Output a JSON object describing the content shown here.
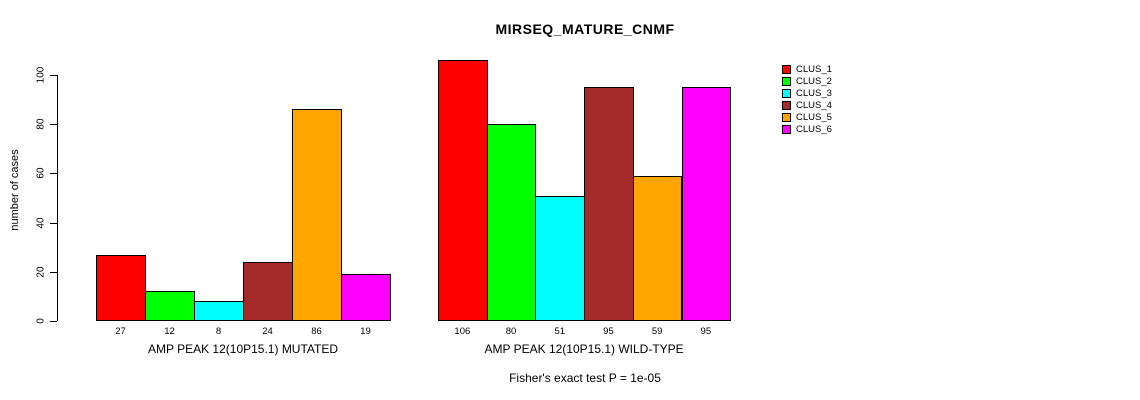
{
  "title": "MIRSEQ_MATURE_CNMF",
  "footer": "Fisher's exact test P = 1e-05",
  "chart_data": {
    "type": "bar",
    "title": "MIRSEQ_MATURE_CNMF",
    "ylabel": "number of cases",
    "ylim": [
      0,
      100
    ],
    "yticks": [
      0,
      20,
      40,
      60,
      80,
      100
    ],
    "grid": false,
    "legend_position": "right",
    "legend_entries": [
      {
        "label": "CLUS_1",
        "color": "#FF0000"
      },
      {
        "label": "CLUS_2",
        "color": "#00FF00"
      },
      {
        "label": "CLUS_3",
        "color": "#00FFFF"
      },
      {
        "label": "CLUS_4",
        "color": "#A52A2A"
      },
      {
        "label": "CLUS_5",
        "color": "#FFA500"
      },
      {
        "label": "CLUS_6",
        "color": "#FF00FF"
      }
    ],
    "groups": [
      {
        "label": "AMP PEAK 12(10P15.1) MUTATED",
        "categories": [
          "CLUS_1",
          "CLUS_2",
          "CLUS_3",
          "CLUS_4",
          "CLUS_5",
          "CLUS_6"
        ],
        "values": [
          27,
          12,
          8,
          24,
          86,
          19
        ]
      },
      {
        "label": "AMP PEAK 12(10P15.1) WILD-TYPE",
        "categories": [
          "CLUS_1",
          "CLUS_2",
          "CLUS_3",
          "CLUS_4",
          "CLUS_5",
          "CLUS_6"
        ],
        "values": [
          106,
          80,
          51,
          95,
          59,
          95
        ]
      }
    ],
    "annotation": "Fisher's exact test P = 1e-05"
  }
}
